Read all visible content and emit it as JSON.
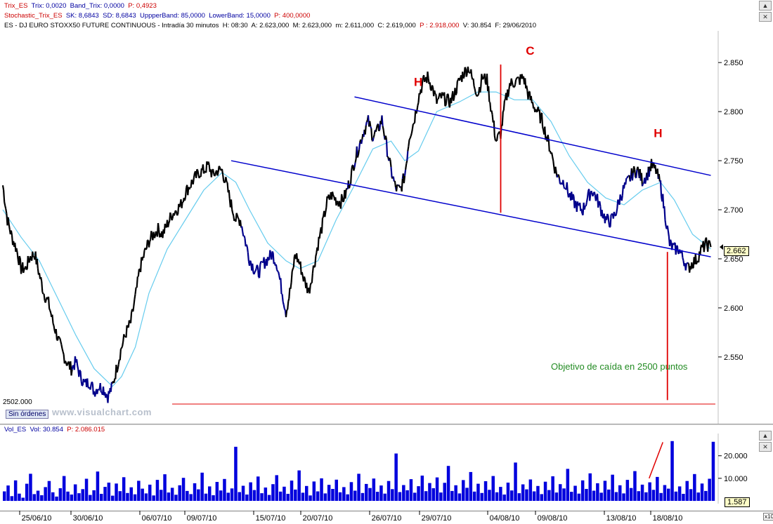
{
  "header": {
    "trix": {
      "name": "Trix_ES",
      "trix": "Trix: 0,0020",
      "band": "Band_Trix: 0,0000",
      "p": "P: 0,4923"
    },
    "stochastic": {
      "name": "Stochastic_Trix_ES",
      "sk": "SK: 8,6843",
      "sd": "SD: 8,6843",
      "upper": "UppperBand: 85,0000",
      "lower": "LowerBand: 15,0000",
      "p": "P: 400,0000"
    },
    "instrument": {
      "title": "ES - DJ EURO STOXX50 FUTURE CONTINUOUS - Intradía 30 minutos",
      "h": "H: 08:30",
      "a": "A: 2.623,000",
      "m": "M: 2.623,000",
      "min": "m: 2.611,000",
      "c": "C: 2.619,000",
      "p": "P : 2.918,000",
      "v": "V: 30.854",
      "date": "F: 29/06/2010"
    },
    "volume": {
      "name": "Vol_ES",
      "vol": "Vol: 30.854",
      "p": "P: 2.086.015"
    }
  },
  "window_buttons": [
    "▲",
    "✕",
    "▲",
    "✕",
    "▲",
    "✕"
  ],
  "labels": {
    "level": "2502.000",
    "orders_button": "Sin órdenes",
    "watermark": "www.visualchart.com",
    "current_price": "2.662",
    "current_volume": "1.587",
    "volume_multiplier": "x10"
  },
  "colors": {
    "price": "#000000",
    "price_dip": "#00008b",
    "moving_average": "#66ccee",
    "trendline": "#0000cc",
    "annotation": "#e00000",
    "target_text": "#228b22",
    "volume": "#0000dd"
  },
  "chart_data": [
    {
      "type": "line",
      "title": "ES - DJ EURO STOXX50 FUTURE CONTINUOUS - Intradía 30 minutos",
      "x_ticks": [
        "25/06/10",
        "30/06/10",
        "06/07/10",
        "09/07/10",
        "15/07/10",
        "20/07/10",
        "26/07/10",
        "29/07/10",
        "04/08/10",
        "09/08/10",
        "13/08/10",
        "18/08/10"
      ],
      "ylim": [
        2492,
        2878
      ],
      "y_ticks": [
        2550,
        2600,
        2650,
        2700,
        2750,
        2800,
        2850
      ],
      "y_tick_labels": [
        "2.550",
        "2.600",
        "2.650",
        "2.700",
        "2.750",
        "2.800",
        "2.850"
      ],
      "series": [
        {
          "kind": "price",
          "values": [
            [
              0,
              2725
            ],
            [
              2,
              2690
            ],
            [
              4,
              2672
            ],
            [
              6,
              2660
            ],
            [
              8,
              2640
            ],
            [
              10,
              2640
            ],
            [
              12,
              2652
            ],
            [
              14,
              2655
            ],
            [
              16,
              2634
            ],
            [
              18,
              2615
            ],
            [
              20,
              2605
            ],
            [
              22,
              2585
            ],
            [
              24,
              2570
            ],
            [
              26,
              2555
            ],
            [
              28,
              2545
            ],
            [
              30,
              2538
            ],
            [
              32,
              2545
            ],
            [
              34,
              2530
            ],
            [
              36,
              2522
            ],
            [
              38,
              2525
            ],
            [
              40,
              2515
            ],
            [
              42,
              2520
            ],
            [
              44,
              2518
            ],
            [
              46,
              2510
            ],
            [
              48,
              2520
            ],
            [
              50,
              2540
            ],
            [
              52,
              2560
            ],
            [
              54,
              2575
            ],
            [
              56,
              2585
            ],
            [
              58,
              2610
            ],
            [
              60,
              2640
            ],
            [
              62,
              2655
            ],
            [
              64,
              2668
            ],
            [
              66,
              2675
            ],
            [
              68,
              2680
            ],
            [
              70,
              2675
            ],
            [
              72,
              2685
            ],
            [
              74,
              2695
            ],
            [
              76,
              2700
            ],
            [
              78,
              2705
            ],
            [
              80,
              2718
            ],
            [
              82,
              2725
            ],
            [
              84,
              2732
            ],
            [
              86,
              2738
            ],
            [
              88,
              2740
            ],
            [
              90,
              2745
            ],
            [
              92,
              2735
            ],
            [
              94,
              2740
            ],
            [
              96,
              2740
            ],
            [
              98,
              2725
            ],
            [
              100,
              2705
            ],
            [
              102,
              2690
            ],
            [
              104,
              2690
            ],
            [
              106,
              2670
            ],
            [
              108,
              2650
            ],
            [
              110,
              2640
            ],
            [
              112,
              2636
            ],
            [
              114,
              2645
            ],
            [
              116,
              2650
            ],
            [
              118,
              2655
            ],
            [
              120,
              2645
            ],
            [
              122,
              2620
            ],
            [
              124,
              2596
            ],
            [
              126,
              2620
            ],
            [
              128,
              2655
            ],
            [
              130,
              2645
            ],
            [
              132,
              2628
            ],
            [
              134,
              2617
            ],
            [
              136,
              2640
            ],
            [
              138,
              2665
            ],
            [
              140,
              2685
            ],
            [
              142,
              2708
            ],
            [
              144,
              2715
            ],
            [
              146,
              2710
            ],
            [
              148,
              2708
            ],
            [
              150,
              2715
            ],
            [
              152,
              2730
            ],
            [
              154,
              2750
            ],
            [
              156,
              2765
            ],
            [
              158,
              2780
            ],
            [
              160,
              2790
            ],
            [
              162,
              2775
            ],
            [
              164,
              2780
            ],
            [
              166,
              2792
            ],
            [
              168,
              2765
            ],
            [
              170,
              2740
            ],
            [
              172,
              2722
            ],
            [
              174,
              2720
            ],
            [
              176,
              2735
            ],
            [
              178,
              2775
            ],
            [
              180,
              2790
            ],
            [
              182,
              2815
            ],
            [
              184,
              2830
            ],
            [
              186,
              2835
            ],
            [
              188,
              2825
            ],
            [
              190,
              2810
            ],
            [
              192,
              2815
            ],
            [
              194,
              2812
            ],
            [
              196,
              2810
            ],
            [
              198,
              2820
            ],
            [
              200,
              2832
            ],
            [
              202,
              2840
            ],
            [
              204,
              2845
            ],
            [
              206,
              2830
            ],
            [
              208,
              2818
            ],
            [
              210,
              2835
            ],
            [
              212,
              2832
            ],
            [
              214,
              2800
            ],
            [
              216,
              2770
            ],
            [
              218,
              2778
            ],
            [
              220,
              2810
            ],
            [
              222,
              2828
            ],
            [
              224,
              2830
            ],
            [
              226,
              2832
            ],
            [
              228,
              2835
            ],
            [
              230,
              2818
            ],
            [
              232,
              2808
            ],
            [
              234,
              2800
            ],
            [
              236,
              2792
            ],
            [
              238,
              2775
            ],
            [
              240,
              2760
            ],
            [
              242,
              2740
            ],
            [
              244,
              2730
            ],
            [
              246,
              2728
            ],
            [
              248,
              2715
            ],
            [
              250,
              2708
            ],
            [
              252,
              2702
            ],
            [
              254,
              2700
            ],
            [
              256,
              2712
            ],
            [
              258,
              2720
            ],
            [
              260,
              2712
            ],
            [
              262,
              2700
            ],
            [
              264,
              2690
            ],
            [
              266,
              2688
            ],
            [
              268,
              2695
            ],
            [
              270,
              2710
            ],
            [
              272,
              2722
            ],
            [
              274,
              2730
            ],
            [
              276,
              2738
            ],
            [
              278,
              2740
            ],
            [
              280,
              2730
            ],
            [
              282,
              2735
            ],
            [
              284,
              2745
            ],
            [
              286,
              2740
            ],
            [
              288,
              2725
            ],
            [
              290,
              2695
            ],
            [
              292,
              2665
            ],
            [
              294,
              2660
            ],
            [
              296,
              2660
            ],
            [
              298,
              2650
            ],
            [
              300,
              2640
            ],
            [
              302,
              2646
            ],
            [
              304,
              2650
            ],
            [
              306,
              2660
            ],
            [
              308,
              2665
            ],
            [
              310,
              2662
            ]
          ]
        },
        {
          "kind": "moving_average",
          "values": [
            [
              0,
              2700
            ],
            [
              8,
              2672
            ],
            [
              16,
              2648
            ],
            [
              24,
              2610
            ],
            [
              32,
              2572
            ],
            [
              40,
              2538
            ],
            [
              48,
              2520
            ],
            [
              52,
              2530
            ],
            [
              58,
              2560
            ],
            [
              64,
              2615
            ],
            [
              72,
              2660
            ],
            [
              80,
              2690
            ],
            [
              88,
              2720
            ],
            [
              96,
              2738
            ],
            [
              102,
              2728
            ],
            [
              108,
              2700
            ],
            [
              116,
              2666
            ],
            [
              124,
              2648
            ],
            [
              130,
              2640
            ],
            [
              138,
              2648
            ],
            [
              146,
              2690
            ],
            [
              154,
              2725
            ],
            [
              162,
              2762
            ],
            [
              170,
              2770
            ],
            [
              176,
              2750
            ],
            [
              182,
              2760
            ],
            [
              190,
              2800
            ],
            [
              200,
              2810
            ],
            [
              208,
              2820
            ],
            [
              216,
              2820
            ],
            [
              224,
              2812
            ],
            [
              232,
              2812
            ],
            [
              240,
              2790
            ],
            [
              248,
              2755
            ],
            [
              256,
              2728
            ],
            [
              264,
              2712
            ],
            [
              272,
              2705
            ],
            [
              280,
              2720
            ],
            [
              288,
              2728
            ],
            [
              294,
              2710
            ],
            [
              302,
              2675
            ],
            [
              310,
              2660
            ]
          ]
        }
      ],
      "trendlines": [
        {
          "name": "lower channel",
          "from": [
            100,
            2750
          ],
          "to": [
            310,
            2652
          ]
        },
        {
          "name": "upper channel",
          "from": [
            154,
            2815
          ],
          "to": [
            310,
            2735
          ]
        }
      ],
      "annotations": {
        "pattern_labels": [
          {
            "text": "H",
            "at": [
              180,
              2826
            ]
          },
          {
            "text": "C",
            "at": [
              229,
              2858
            ]
          },
          {
            "text": "H",
            "at": [
              285,
              2774
            ]
          }
        ],
        "target_text": {
          "text": "Objetivo de caída en 2500 puntos",
          "at": [
            240,
            2537
          ]
        },
        "red_lines": [
          {
            "from": [
              218,
              2848
            ],
            "to": [
              218,
              2697
            ]
          },
          {
            "from": [
              291,
              2657
            ],
            "to": [
              291,
              2506
            ]
          }
        ],
        "level_line": 2502,
        "current_value": 2662
      }
    },
    {
      "type": "bar",
      "title": "Vol_ES",
      "ylim": [
        0,
        28000
      ],
      "y_ticks": [
        10000,
        20000
      ],
      "y_tick_labels": [
        "10.000",
        "20.000"
      ],
      "red_line": {
        "from": [
          283,
          10000
        ],
        "to": [
          289,
          26000
        ]
      },
      "note": "Intraday volume spikes",
      "values": [
        4200,
        6800,
        2100,
        9100,
        3200,
        1400,
        7600,
        12000,
        3000,
        4500,
        2500,
        6100,
        8800,
        3800,
        1900,
        5600,
        11000,
        4100,
        2800,
        7300,
        3400,
        5200,
        9800,
        2600,
        4700,
        13000,
        3100,
        6200,
        8100,
        2300,
        7700,
        4300,
        10500,
        3500,
        6000,
        2900,
        8900,
        5400,
        3300,
        7200,
        2400,
        9300,
        4900,
        11800,
        3700,
        5800,
        2700,
        6900,
        10200,
        4400,
        3000,
        7800,
        5100,
        12500,
        3200,
        6400,
        2500,
        8400,
        4600,
        9700,
        3600,
        5500,
        24000,
        3900,
        6700,
        2800,
        8200,
        4800,
        10800,
        3400,
        5900,
        2600,
        7400,
        11400,
        4100,
        6300,
        3100,
        9000,
        5000,
        13500,
        3600,
        6600,
        2400,
        8600,
        4200,
        10000,
        3300,
        7100,
        5300,
        9400,
        3800,
        6100,
        2900,
        8300,
        4500,
        12000,
        3500,
        7500,
        5700,
        9900,
        4000,
        6800,
        3200,
        8800,
        5200,
        21000,
        3900,
        7000,
        4700,
        9600,
        3600,
        6500,
        11200,
        4300,
        7900,
        5600,
        10400,
        3700,
        8000,
        15500,
        4400,
        6900,
        3300,
        9200,
        5800,
        12800,
        4100,
        7600,
        3500,
        8700,
        4900,
        11000,
        3800,
        6200,
        2800,
        8100,
        4600,
        17000,
        3400,
        7300,
        5100,
        9500,
        4200,
        6600,
        3000,
        8500,
        4800,
        10900,
        3700,
        7400,
        5500,
        14200,
        4000,
        6700,
        3200,
        9100,
        5300,
        12200,
        4500,
        7800,
        3600,
        8900,
        5000,
        11600,
        3900,
        6900,
        3300,
        9300,
        5700,
        13200,
        4300,
        7200,
        3800,
        8200,
        4900,
        10600,
        3500,
        7000,
        5400,
        26500,
        4100,
        6400,
        3100,
        8800,
        5200,
        11900,
        3700,
        7700,
        4400,
        9800,
        26200
      ]
    }
  ]
}
